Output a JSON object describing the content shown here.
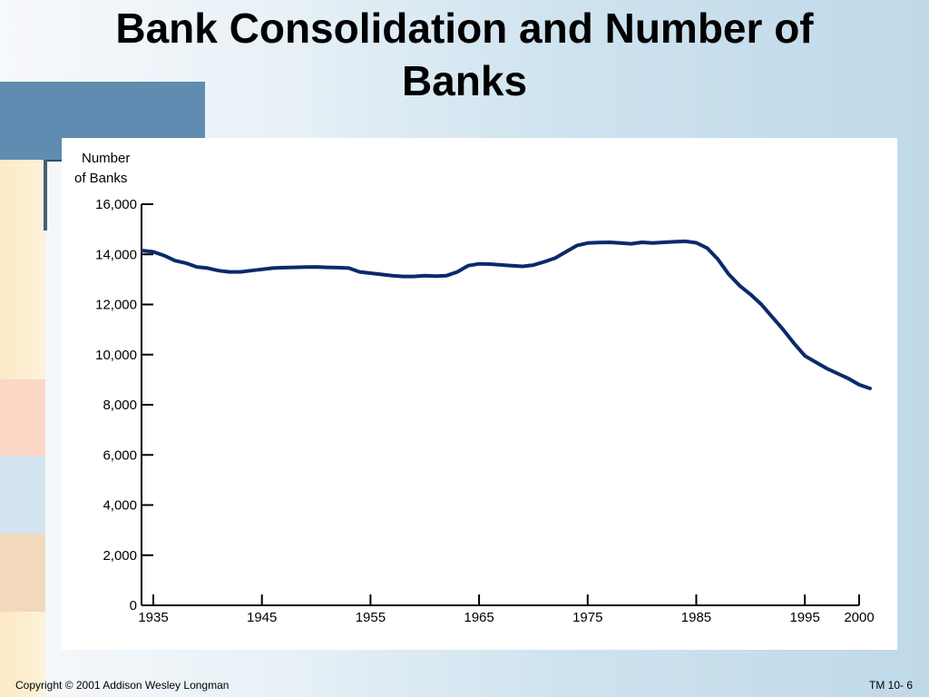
{
  "slide": {
    "title": "Bank Consolidation and Number of Banks",
    "footer_copyright": "Copyright © 2001 Addison Wesley Longman",
    "footer_slide_number": "TM 10- 6"
  },
  "colors": {
    "line": "#0a2a6b",
    "accent_bar": "#5f8cb0"
  },
  "chart_data": {
    "type": "line",
    "title": "Bank Consolidation and Number of Banks",
    "ylabel": "Number of Banks",
    "xlabel": "",
    "xlim": [
      1935,
      2000
    ],
    "ylim": [
      0,
      16000
    ],
    "x_ticks": [
      1935,
      1945,
      1955,
      1965,
      1975,
      1985,
      1995,
      2000
    ],
    "y_ticks": [
      0,
      2000,
      4000,
      6000,
      8000,
      10000,
      12000,
      14000,
      16000
    ],
    "x_tick_labels": [
      "1935",
      "1945",
      "1955",
      "1965",
      "1975",
      "1985",
      "1995",
      "2000"
    ],
    "y_tick_labels": [
      "0",
      "2,000",
      "4,000",
      "6,000",
      "8,000",
      "10,000",
      "12,000",
      "14,000",
      "16,000"
    ],
    "grid": false,
    "series": [
      {
        "x": [
          1934,
          1935,
          1936,
          1937,
          1938,
          1939,
          1940,
          1941,
          1942,
          1943,
          1944,
          1945,
          1946,
          1947,
          1948,
          1949,
          1950,
          1951,
          1952,
          1953,
          1954,
          1955,
          1956,
          1957,
          1958,
          1959,
          1960,
          1961,
          1962,
          1963,
          1964,
          1965,
          1966,
          1967,
          1968,
          1969,
          1970,
          1971,
          1972,
          1973,
          1974,
          1975,
          1976,
          1977,
          1978,
          1979,
          1980,
          1981,
          1982,
          1983,
          1984,
          1985,
          1986,
          1987,
          1988,
          1989,
          1990,
          1991,
          1992,
          1993,
          1994,
          1995,
          1996,
          1997,
          1998,
          1999,
          2000,
          2001
        ],
        "values": [
          14150,
          14100,
          13950,
          13750,
          13650,
          13500,
          13450,
          13350,
          13300,
          13300,
          13350,
          13400,
          13450,
          13470,
          13480,
          13490,
          13500,
          13480,
          13470,
          13450,
          13300,
          13250,
          13200,
          13150,
          13120,
          13120,
          13150,
          13130,
          13150,
          13300,
          13550,
          13620,
          13610,
          13580,
          13550,
          13520,
          13570,
          13700,
          13850,
          14100,
          14350,
          14450,
          14470,
          14480,
          14450,
          14420,
          14480,
          14450,
          14480,
          14500,
          14520,
          14460,
          14250,
          13800,
          13200,
          12750,
          12400,
          12000,
          11500,
          11000,
          10450,
          9950,
          9700,
          9450,
          9250,
          9050,
          8800,
          8650
        ]
      }
    ]
  }
}
